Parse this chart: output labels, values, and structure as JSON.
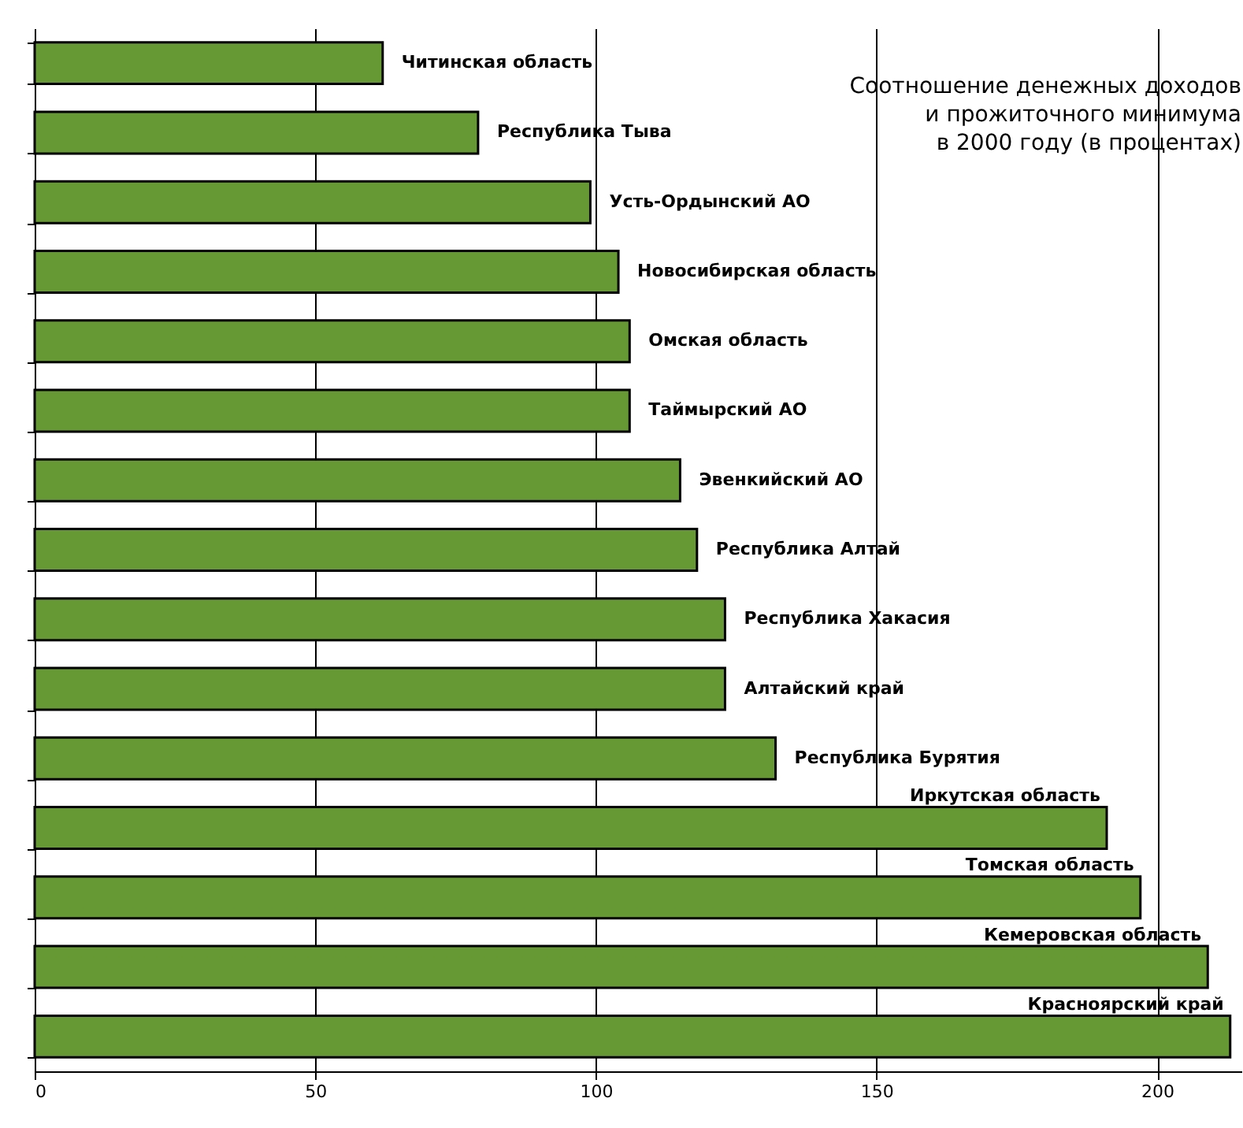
{
  "chart_data": {
    "type": "bar",
    "orientation": "horizontal",
    "title": "Соотношение денежных доходов\nи прожиточного минимума\nв 2000 году (в процентах)",
    "categories": [
      "Читинская область",
      "Республика Тыва",
      "Усть-Ордынский АО",
      "Новосибирская область",
      "Омская область",
      "Таймырский АО",
      "Эвенкийский АО",
      "Республика Алтай",
      "Республика Хакасия",
      "Алтайский край",
      "Республика Бурятия",
      "Иркутская область",
      "Томская область",
      "Кемеровская область",
      "Красноярский край"
    ],
    "values": [
      62,
      79,
      99,
      104,
      106,
      106,
      115,
      118,
      123,
      123,
      132,
      191,
      197,
      209,
      213
    ],
    "color": "#669933",
    "xlim": [
      0,
      215
    ],
    "xticks": [
      0,
      50,
      100,
      150,
      200
    ],
    "grid": "x",
    "tick_labels": "x"
  }
}
